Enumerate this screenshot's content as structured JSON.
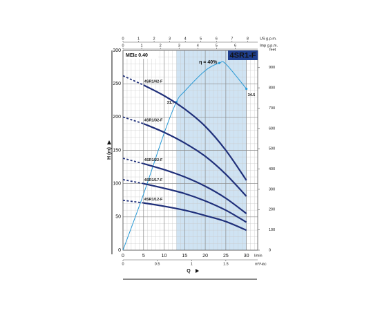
{
  "chart_data": {
    "type": "line",
    "title": "4SR1-F",
    "annotation": "MEI≥ 0.40",
    "x_label": "Q",
    "y_label": "H (m)",
    "x_unit_label": "l/min",
    "xlim": [
      0,
      32.75
    ],
    "xticks": [
      0,
      5,
      10,
      15,
      20,
      25,
      30
    ],
    "ylim": [
      0,
      300
    ],
    "yticks": [
      0,
      50,
      100,
      150,
      200,
      250,
      300
    ],
    "x_minor_step": 1,
    "y_minor_step": 10,
    "grid": true,
    "shaded_range": [
      13,
      30
    ],
    "shade_color": "#cfe3f3",
    "x": [
      0,
      5,
      10,
      15,
      20,
      25,
      30
    ],
    "dashed_until": 5,
    "series": [
      {
        "name": "4SR1/42-F",
        "color": "#1f2f7a",
        "values": [
          262,
          248,
          232,
          212,
          186,
          150,
          105
        ]
      },
      {
        "name": "4SR1/32-F",
        "color": "#1f2f7a",
        "values": [
          200,
          190,
          177,
          161,
          141,
          114,
          81
        ]
      },
      {
        "name": "4SR1/22-F",
        "color": "#1f2f7a",
        "values": [
          138,
          130,
          121,
          110,
          96,
          78,
          55
        ]
      },
      {
        "name": "4SR1/17-F",
        "color": "#1f2f7a",
        "values": [
          106,
          100,
          93,
          85,
          74,
          60,
          42
        ]
      },
      {
        "name": "4SR1/12-F",
        "color": "#1f2f7a",
        "values": [
          75,
          71,
          66,
          60,
          52,
          43,
          30
        ]
      }
    ],
    "efficiency": {
      "color": "#2a9ad6",
      "ylim": [
        0,
        42.7
      ],
      "x": [
        0,
        5,
        10,
        13,
        15,
        20,
        23.4,
        25,
        30
      ],
      "values": [
        0,
        12,
        25,
        31.7,
        34,
        38.4,
        40,
        39.8,
        34.5
      ],
      "peak": {
        "x": 23.4,
        "value": 40,
        "label": "η = 40%"
      },
      "marked": [
        {
          "x": 13,
          "value": 31.7
        },
        {
          "x": 30,
          "value": 34.5
        }
      ]
    },
    "top_axes": [
      {
        "label": "US g.p.m.",
        "lim": [
          0,
          8.65
        ],
        "ticks": [
          0,
          1,
          2,
          3,
          4,
          5,
          6,
          7,
          8
        ]
      },
      {
        "label": "Imp g.p.m.",
        "lim": [
          0,
          7.2
        ],
        "ticks": [
          0,
          1,
          2,
          3,
          4,
          5,
          6
        ]
      }
    ],
    "bottom_axis2": {
      "label": "m³/час",
      "lim": [
        0,
        1.965
      ],
      "ticks": [
        0,
        0.5,
        1,
        1.5
      ]
    },
    "y2_label": "feet",
    "y2lim": [
      0,
      984.25
    ],
    "y2ticks": [
      0,
      100,
      200,
      300,
      400,
      500,
      600,
      700,
      800,
      900
    ]
  }
}
